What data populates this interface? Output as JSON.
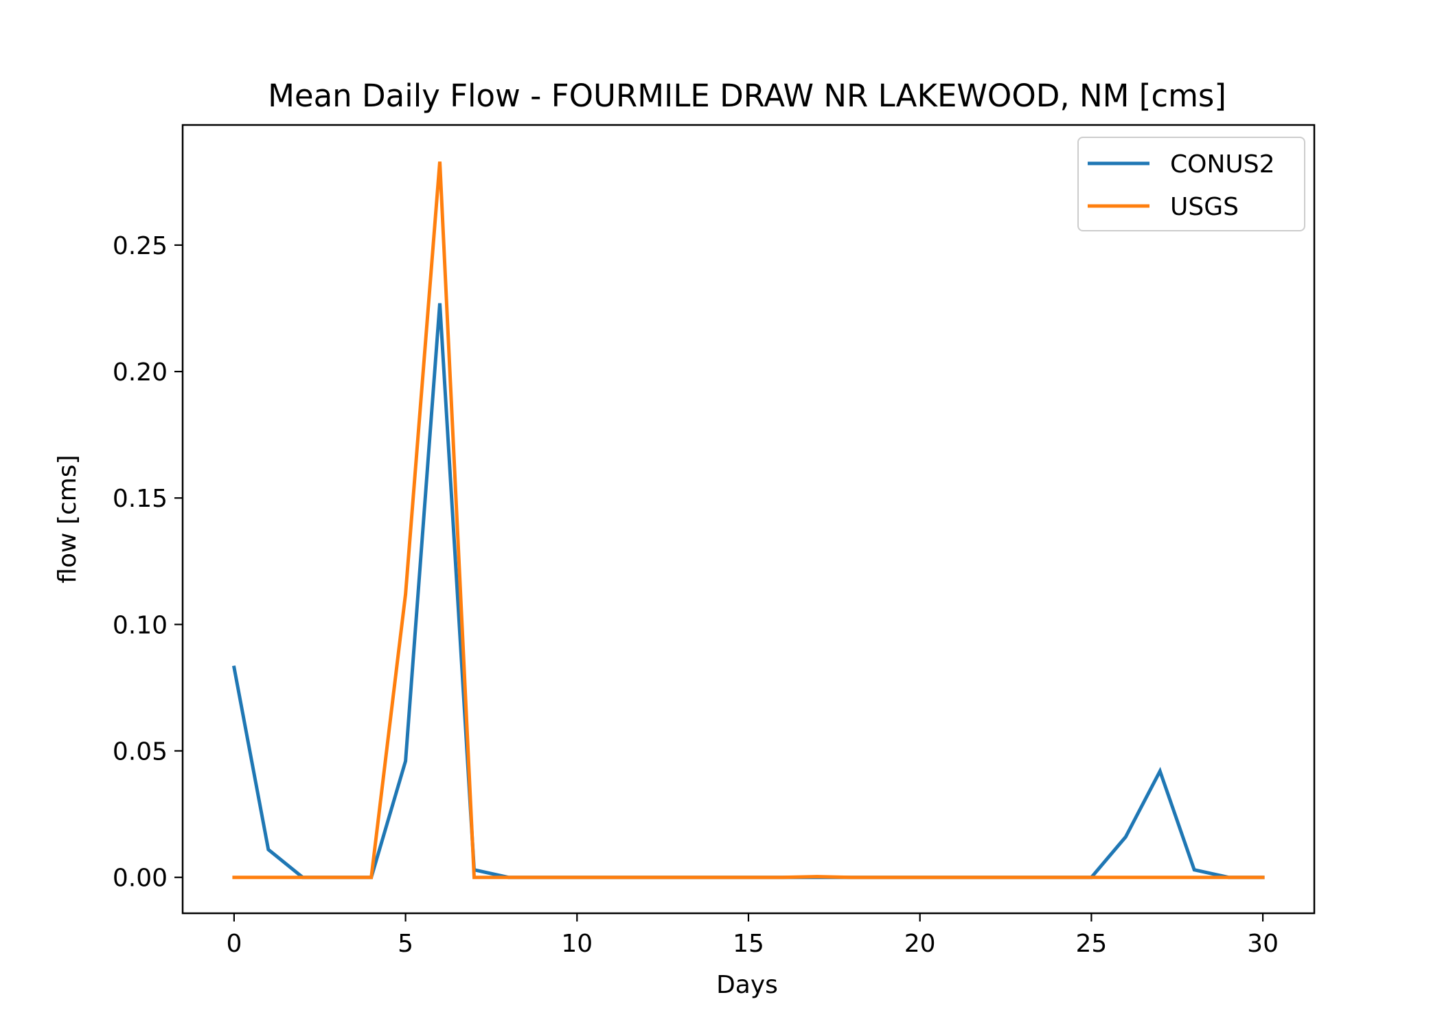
{
  "chart_data": {
    "type": "line",
    "title": "Mean Daily Flow - FOURMILE DRAW NR LAKEWOOD, NM [cms]",
    "xlabel": "Days",
    "ylabel": "flow [cms]",
    "xlim": [
      -1.5,
      31.5
    ],
    "ylim": [
      -0.0142,
      0.2975
    ],
    "xticks": [
      0,
      5,
      10,
      15,
      20,
      25,
      30
    ],
    "xtick_labels": [
      "0",
      "5",
      "10",
      "15",
      "20",
      "25",
      "30"
    ],
    "yticks": [
      0.0,
      0.05,
      0.1,
      0.15,
      0.2,
      0.25
    ],
    "ytick_labels": [
      "0.00",
      "0.05",
      "0.10",
      "0.15",
      "0.20",
      "0.25"
    ],
    "grid": false,
    "legend_position": "top-right",
    "x": [
      0,
      1,
      2,
      3,
      4,
      5,
      6,
      7,
      8,
      9,
      10,
      11,
      12,
      13,
      14,
      15,
      16,
      17,
      18,
      19,
      20,
      21,
      22,
      23,
      24,
      25,
      26,
      27,
      28,
      29,
      30
    ],
    "series": [
      {
        "name": "CONUS2",
        "color": "#1f77b4",
        "values": [
          0.083,
          0.011,
          0,
          0,
          0,
          0.046,
          0.227,
          0.003,
          0,
          0,
          0,
          0,
          0,
          0,
          0,
          0,
          0,
          0,
          0,
          0,
          0,
          0,
          0,
          0,
          0,
          0,
          0.016,
          0.042,
          0.003,
          0,
          0
        ]
      },
      {
        "name": "USGS",
        "color": "#ff7f0e",
        "values": [
          0,
          0,
          0,
          0,
          0,
          0.112,
          0.283,
          0,
          0,
          0,
          0,
          0,
          0,
          0,
          0,
          0,
          0,
          0.0003,
          0,
          0,
          0,
          0,
          0,
          0,
          0,
          0,
          0,
          0,
          0,
          0,
          0
        ]
      }
    ]
  }
}
